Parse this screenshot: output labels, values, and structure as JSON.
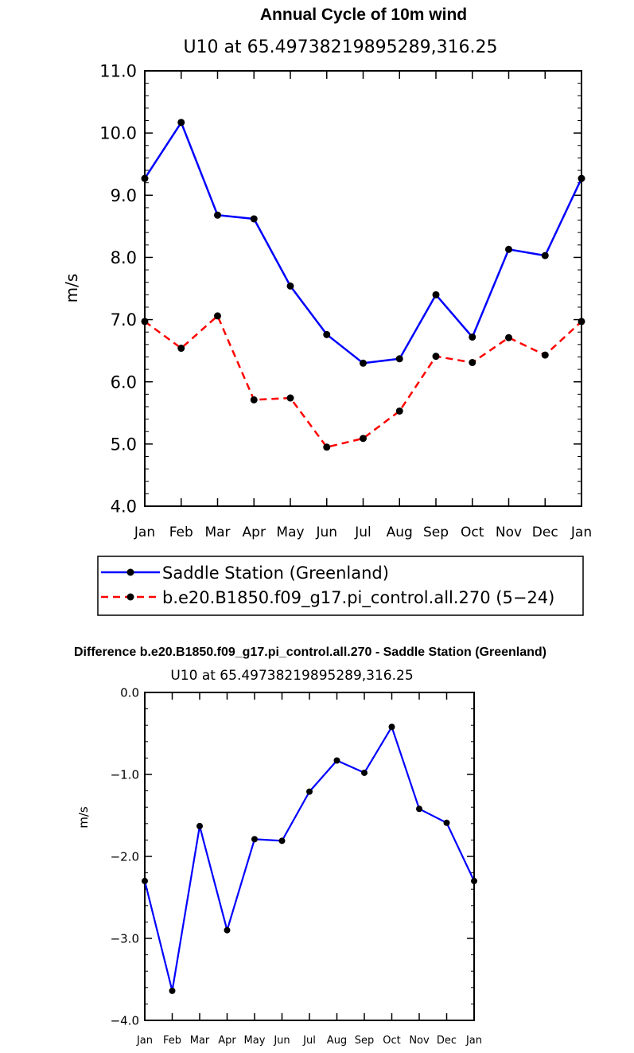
{
  "chart_data": [
    {
      "type": "line",
      "title": "Annual Cycle of 10m wind",
      "subtitle": "U10  at  65.49738219895289,316.25",
      "ylabel": "m/s",
      "ylim": [
        4.0,
        11.0
      ],
      "yticks": [
        "4.0",
        "5.0",
        "6.0",
        "7.0",
        "8.0",
        "9.0",
        "10.0",
        "11.0"
      ],
      "categories": [
        "Jan",
        "Feb",
        "Mar",
        "Apr",
        "May",
        "Jun",
        "Jul",
        "Aug",
        "Sep",
        "Oct",
        "Nov",
        "Dec",
        "Jan"
      ],
      "series": [
        {
          "name": "Saddle Station (Greenland)",
          "color": "#0000ff",
          "dash": "solid",
          "values": [
            9.27,
            10.17,
            8.68,
            8.62,
            7.54,
            6.76,
            6.3,
            6.37,
            7.4,
            6.72,
            8.13,
            8.03,
            9.27
          ]
        },
        {
          "name": "b.e20.B1850.f09_g17.pi_control.all.270 (5−24)",
          "color": "#ff0000",
          "dash": "dashed",
          "values": [
            6.97,
            6.54,
            7.06,
            5.71,
            5.74,
            4.95,
            5.09,
            5.53,
            6.41,
            6.31,
            6.71,
            6.43,
            6.97
          ]
        }
      ],
      "legend": "bottom"
    },
    {
      "type": "line",
      "title": "Difference b.e20.B1850.f09_g17.pi_control.all.270 - Saddle Station (Greenland)",
      "subtitle": "U10  at  65.49738219895289,316.25",
      "ylabel": "m/s",
      "ylim": [
        -4.0,
        0.0
      ],
      "yticks": [
        "−4.0",
        "−3.0",
        "−2.0",
        "−1.0",
        "0.0"
      ],
      "categories": [
        "Jan",
        "Feb",
        "Mar",
        "Apr",
        "May",
        "Jun",
        "Jul",
        "Aug",
        "Sep",
        "Oct",
        "Nov",
        "Dec",
        "Jan"
      ],
      "series": [
        {
          "color": "#0000ff",
          "dash": "solid",
          "values": [
            -2.3,
            -3.64,
            -1.63,
            -2.9,
            -1.79,
            -1.81,
            -1.21,
            -0.83,
            -0.98,
            -0.42,
            -1.42,
            -1.59,
            -2.3
          ]
        }
      ]
    }
  ]
}
